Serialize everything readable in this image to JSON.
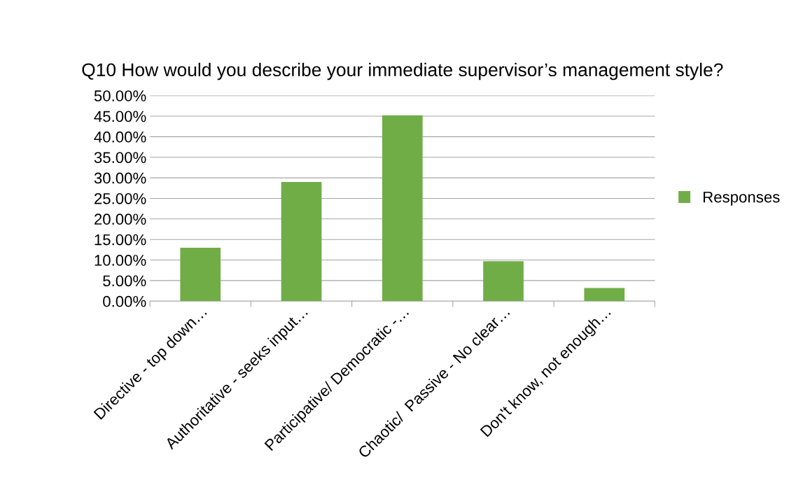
{
  "chart_data": {
    "type": "bar",
    "title": "Q10 How would you describe your immediate supervisor’s management style?",
    "categories": [
      "Directive - top down…",
      "Authoritative - seeks input…",
      "Participative/ Democratic -…",
      "Chaotic/  Passive - No clear…",
      "Don't know, not enough…"
    ],
    "series": [
      {
        "name": "Responses",
        "color": "#70ad47",
        "values": [
          13.0,
          29.0,
          45.2,
          9.7,
          3.2
        ]
      }
    ],
    "ylim": [
      0,
      50
    ],
    "yticks": [
      {
        "value": 0,
        "label": "0.00%"
      },
      {
        "value": 5,
        "label": "5.00%"
      },
      {
        "value": 10,
        "label": "10.00%"
      },
      {
        "value": 15,
        "label": "15.00%"
      },
      {
        "value": 20,
        "label": "20.00%"
      },
      {
        "value": 25,
        "label": "25.00%"
      },
      {
        "value": 30,
        "label": "30.00%"
      },
      {
        "value": 35,
        "label": "35.00%"
      },
      {
        "value": 40,
        "label": "40.00%"
      },
      {
        "value": 45,
        "label": "45.00%"
      },
      {
        "value": 50,
        "label": "50.00%"
      }
    ],
    "grid": "y",
    "legend": "right"
  }
}
